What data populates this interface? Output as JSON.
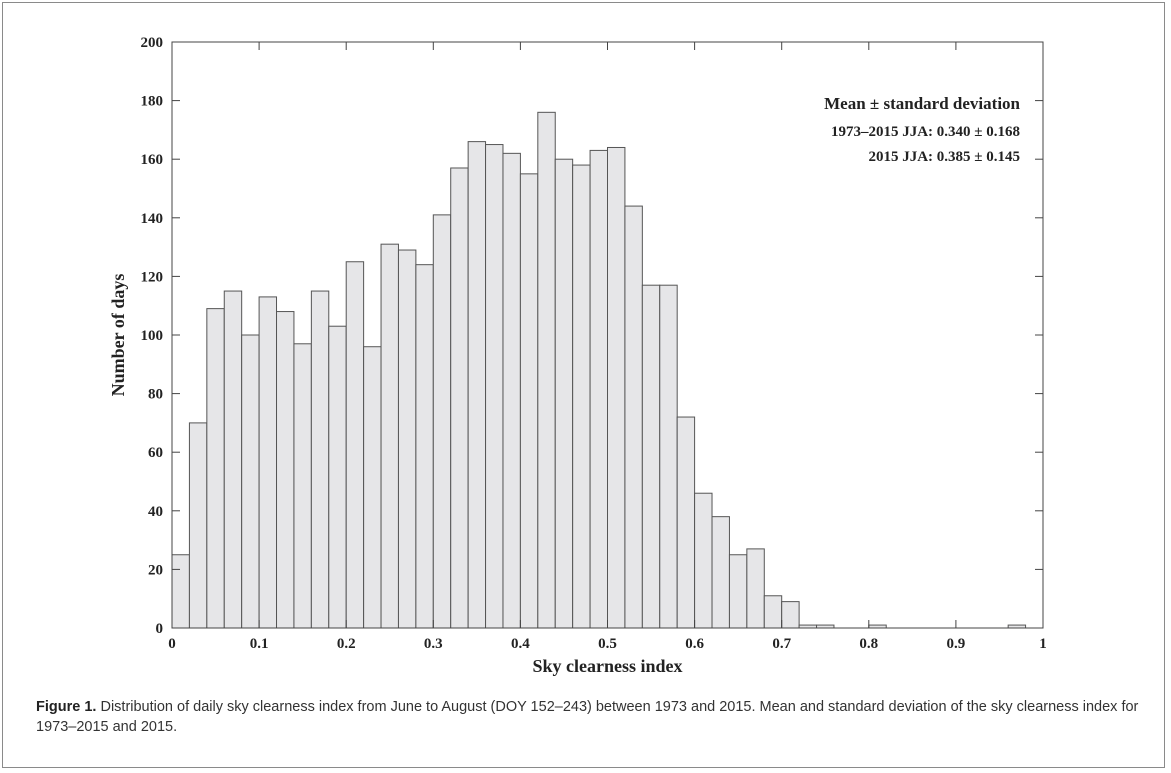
{
  "chart_data": {
    "type": "bar",
    "xlabel": "Sky clearness index",
    "ylabel": "Number of days",
    "xlim": [
      0,
      1
    ],
    "ylim": [
      0,
      200
    ],
    "xticks": [
      "0",
      "0.1",
      "0.2",
      "0.3",
      "0.4",
      "0.5",
      "0.6",
      "0.7",
      "0.8",
      "0.9",
      "1"
    ],
    "yticks": [
      "0",
      "20",
      "40",
      "60",
      "80",
      "100",
      "120",
      "140",
      "160",
      "180",
      "200"
    ],
    "bin_width": 0.02,
    "bin_starts": [
      0.0,
      0.02,
      0.04,
      0.06,
      0.08,
      0.1,
      0.12,
      0.14,
      0.16,
      0.18,
      0.2,
      0.22,
      0.24,
      0.26,
      0.28,
      0.3,
      0.32,
      0.34,
      0.36,
      0.38,
      0.4,
      0.42,
      0.44,
      0.46,
      0.48,
      0.5,
      0.52,
      0.54,
      0.56,
      0.58,
      0.6,
      0.62,
      0.64,
      0.66,
      0.68,
      0.7,
      0.72,
      0.74,
      0.76,
      0.78,
      0.8,
      0.82,
      0.84,
      0.86,
      0.88,
      0.9,
      0.92,
      0.94,
      0.96,
      0.98
    ],
    "values": [
      25,
      70,
      109,
      115,
      100,
      113,
      108,
      97,
      115,
      103,
      125,
      96,
      131,
      129,
      124,
      141,
      157,
      166,
      165,
      162,
      155,
      176,
      160,
      158,
      163,
      164,
      144,
      117,
      117,
      72,
      46,
      38,
      25,
      27,
      11,
      9,
      1,
      1,
      0,
      0,
      1,
      0,
      0,
      0,
      0,
      0,
      0,
      0,
      1,
      0
    ],
    "bar_fill": "#e6e6e8",
    "bar_stroke": "#555555",
    "grid": false,
    "legend_placement": "top-right",
    "annotation": {
      "title": "Mean ± standard deviation",
      "lines": [
        "1973–2015 JJA: 0.340 ± 0.168",
        "2015 JJA: 0.385 ± 0.145"
      ]
    }
  },
  "caption": {
    "label": "Figure 1.",
    "text": " Distribution of daily sky clearness index from June to August (DOY 152–243) between 1973 and 2015. Mean and standard deviation of the sky clearness index for 1973–2015 and 2015."
  }
}
